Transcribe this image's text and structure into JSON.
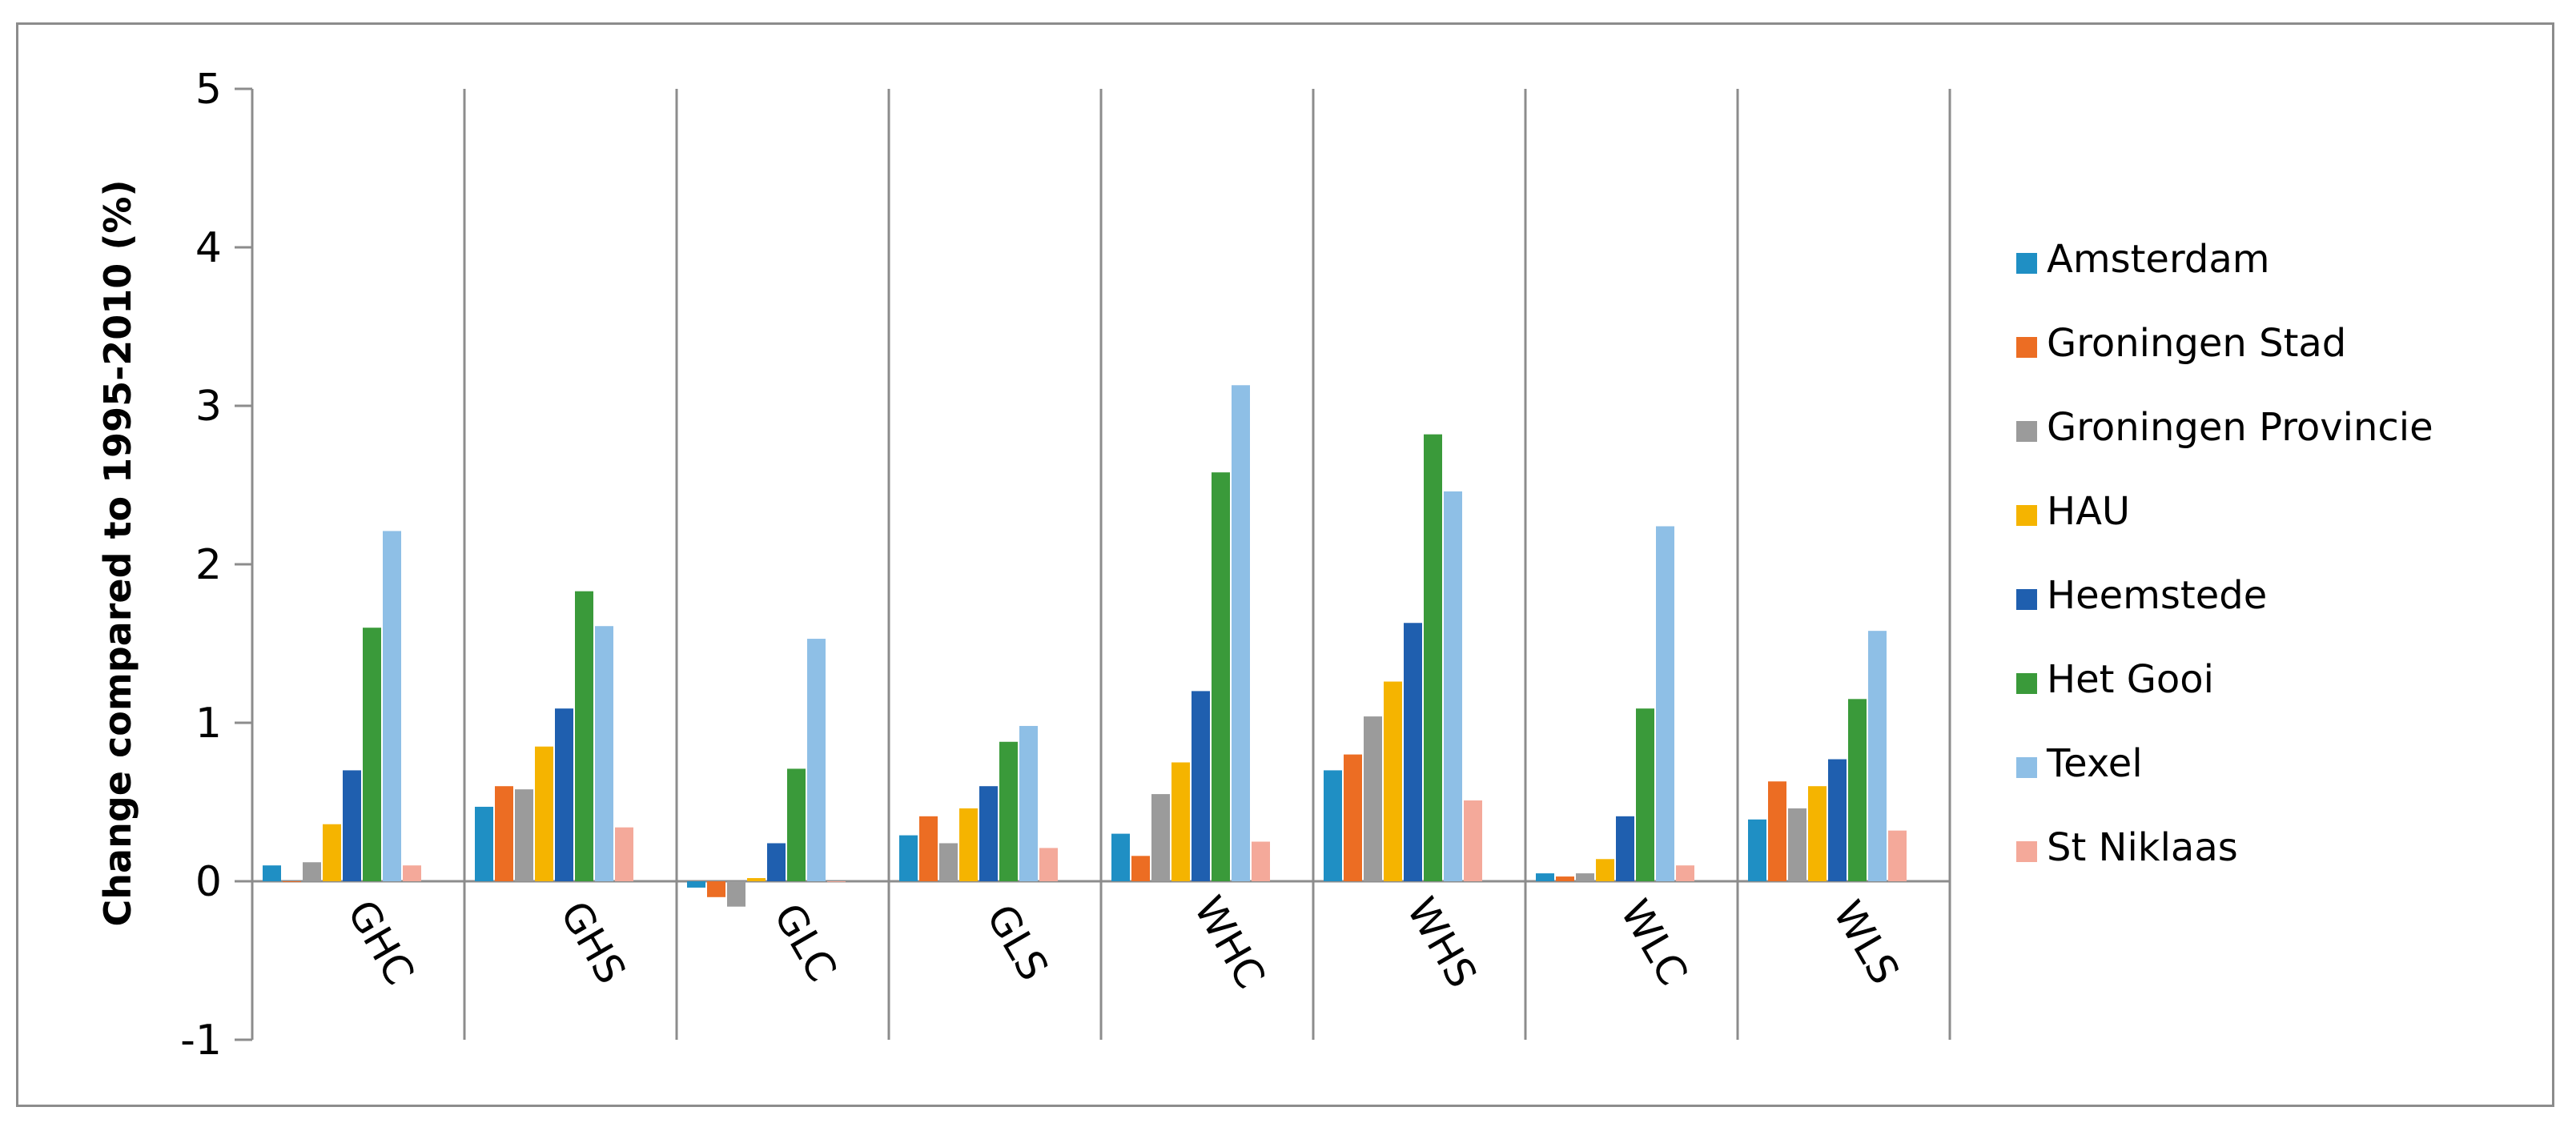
{
  "chart_data": {
    "type": "bar",
    "title": "",
    "xlabel": "",
    "ylabel": "Change compared to 1995-2010 (%)",
    "ylim": [
      -1,
      5
    ],
    "yticks": [
      -1,
      0,
      1,
      2,
      3,
      4,
      5
    ],
    "grid": false,
    "legend_position": "right",
    "categories": [
      "GHC",
      "GHS",
      "GLC",
      "GLS",
      "WHC",
      "WHS",
      "WLC",
      "WLS"
    ],
    "series": [
      {
        "name": "Amsterdam",
        "color": "#1F8FC4",
        "values": [
          0.1,
          0.47,
          -0.04,
          0.29,
          0.3,
          0.7,
          0.05,
          0.39
        ]
      },
      {
        "name": "Groningen Stad",
        "color": "#EC6D23",
        "values": [
          0.0,
          0.6,
          -0.1,
          0.41,
          0.16,
          0.8,
          0.03,
          0.63
        ]
      },
      {
        "name": "Groningen Provincie",
        "color": "#9B9B9B",
        "values": [
          0.12,
          0.58,
          -0.16,
          0.24,
          0.55,
          1.04,
          0.05,
          0.46
        ]
      },
      {
        "name": "HAU",
        "color": "#F5B400",
        "values": [
          0.36,
          0.85,
          0.02,
          0.46,
          0.75,
          1.26,
          0.14,
          0.6
        ]
      },
      {
        "name": "Heemstede",
        "color": "#1F5FAF",
        "values": [
          0.7,
          1.09,
          0.24,
          0.6,
          1.2,
          1.63,
          0.41,
          0.77
        ]
      },
      {
        "name": "Het Gooi",
        "color": "#3A9A3A",
        "values": [
          1.6,
          1.83,
          0.71,
          0.88,
          2.58,
          2.82,
          1.09,
          1.15
        ]
      },
      {
        "name": "Texel",
        "color": "#8EBFE6",
        "values": [
          2.21,
          1.61,
          1.53,
          0.98,
          3.13,
          2.46,
          2.24,
          1.58
        ]
      },
      {
        "name": "St Niklaas",
        "color": "#F4A99A",
        "values": [
          0.1,
          0.34,
          0.0,
          0.21,
          0.25,
          0.51,
          0.1,
          0.32
        ]
      }
    ]
  }
}
